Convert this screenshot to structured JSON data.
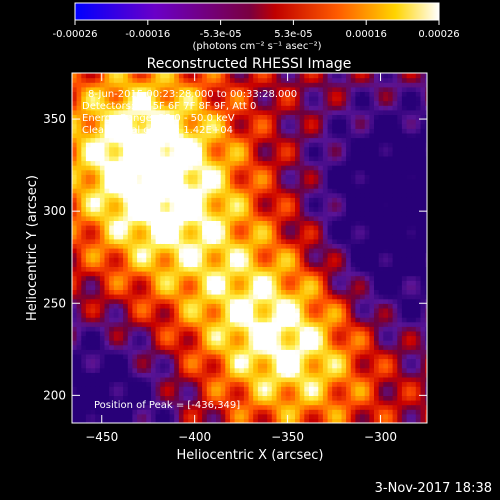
{
  "chart_data": {
    "type": "heatmap",
    "title": "Reconstructed RHESSI Image",
    "xlabel": "Heliocentric X (arcsec)",
    "ylabel": "Heliocentric Y (arcsec)",
    "xlim": [
      -466,
      -275
    ],
    "ylim": [
      185,
      375
    ],
    "xticks": [
      -450,
      -400,
      -350,
      -300
    ],
    "yticks": [
      200,
      250,
      300,
      350
    ],
    "colorbar": {
      "unit": "(photons cm⁻² s⁻¹ asec⁻²)",
      "range": [
        -0.00026,
        0.00026
      ],
      "ticks": [
        "-0.00026",
        "-0.00016",
        "-5.3e-05",
        "5.3e-05",
        "0.00016",
        "0.00026"
      ]
    },
    "annotations": [
      "8-Jun-2015 00:23:28.000 to 00:33:28.000",
      "Detectors: 3F 5F 6F 7F 8F 9F, Att 0",
      "Energy Range: 25.0 - 50.0 keV",
      "Clean.  Total counts: 1.42E+04"
    ],
    "peak_label": "Position of Peak = [-436,349]",
    "peak": [
      -436,
      349
    ],
    "bright_regions": [
      {
        "x": -430,
        "y": 340,
        "level": 1.0
      },
      {
        "x": -415,
        "y": 300,
        "level": 0.9
      },
      {
        "x": -340,
        "y": 225,
        "level": 0.95
      },
      {
        "x": -370,
        "y": 250,
        "level": 0.75
      }
    ],
    "dim_regions": [
      {
        "x": -290,
        "y": 320,
        "level": -0.2
      },
      {
        "x": -300,
        "y": 260,
        "level": -0.1
      },
      {
        "x": -455,
        "y": 195,
        "level": -0.2
      }
    ]
  },
  "footer": {
    "timestamp": "3-Nov-2017 18:38"
  }
}
